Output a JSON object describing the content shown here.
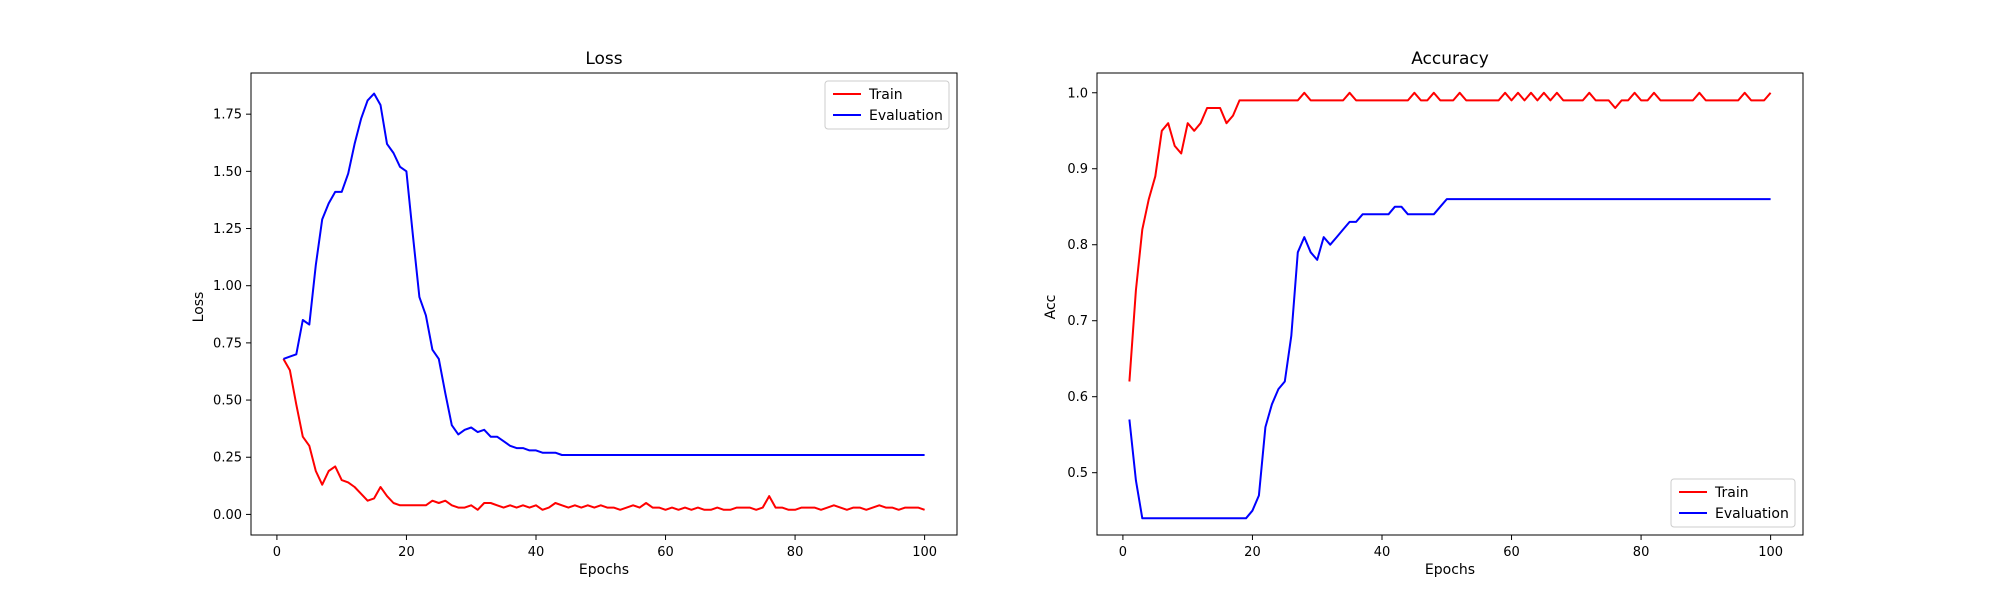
{
  "chart_data": [
    {
      "type": "line",
      "title": "Loss",
      "xlabel": "Epochs",
      "ylabel": "Loss",
      "xlim": [
        -4,
        105
      ],
      "ylim": [
        -0.09,
        1.93
      ],
      "xticks": [
        0,
        20,
        40,
        60,
        80,
        100
      ],
      "xtick_labels": [
        "0",
        "20",
        "40",
        "60",
        "80",
        "100"
      ],
      "yticks": [
        0,
        0.25,
        0.5,
        0.75,
        1.0,
        1.25,
        1.5,
        1.75
      ],
      "ytick_labels": [
        "0.00",
        "0.25",
        "0.50",
        "0.75",
        "1.00",
        "1.25",
        "1.50",
        "1.75"
      ],
      "grid": false,
      "legend_position": "top-right",
      "x": [
        1,
        2,
        3,
        4,
        5,
        6,
        7,
        8,
        9,
        10,
        11,
        12,
        13,
        14,
        15,
        16,
        17,
        18,
        19,
        20,
        21,
        22,
        23,
        24,
        25,
        26,
        27,
        28,
        29,
        30,
        31,
        32,
        33,
        34,
        35,
        36,
        37,
        38,
        39,
        40,
        41,
        42,
        43,
        44,
        45,
        46,
        47,
        48,
        49,
        50,
        51,
        52,
        53,
        54,
        55,
        56,
        57,
        58,
        59,
        60,
        61,
        62,
        63,
        64,
        65,
        66,
        67,
        68,
        69,
        70,
        71,
        72,
        73,
        74,
        75,
        76,
        77,
        78,
        79,
        80,
        81,
        82,
        83,
        84,
        85,
        86,
        87,
        88,
        89,
        90,
        91,
        92,
        93,
        94,
        95,
        96,
        97,
        98,
        99,
        100
      ],
      "series": [
        {
          "name": "Train",
          "color": "#ff0000",
          "values": [
            0.68,
            0.63,
            0.48,
            0.34,
            0.3,
            0.19,
            0.13,
            0.19,
            0.21,
            0.15,
            0.14,
            0.12,
            0.09,
            0.06,
            0.07,
            0.12,
            0.08,
            0.05,
            0.04,
            0.04,
            0.04,
            0.04,
            0.04,
            0.06,
            0.05,
            0.06,
            0.04,
            0.03,
            0.03,
            0.04,
            0.02,
            0.05,
            0.05,
            0.04,
            0.03,
            0.04,
            0.03,
            0.04,
            0.03,
            0.04,
            0.02,
            0.03,
            0.05,
            0.04,
            0.03,
            0.04,
            0.03,
            0.04,
            0.03,
            0.04,
            0.03,
            0.03,
            0.02,
            0.03,
            0.04,
            0.03,
            0.05,
            0.03,
            0.03,
            0.02,
            0.03,
            0.02,
            0.03,
            0.02,
            0.03,
            0.02,
            0.02,
            0.03,
            0.02,
            0.02,
            0.03,
            0.03,
            0.03,
            0.02,
            0.03,
            0.08,
            0.03,
            0.03,
            0.02,
            0.02,
            0.03,
            0.03,
            0.03,
            0.02,
            0.03,
            0.04,
            0.03,
            0.02,
            0.03,
            0.03,
            0.02,
            0.03,
            0.04,
            0.03,
            0.03,
            0.02,
            0.03,
            0.03,
            0.03,
            0.02
          ]
        },
        {
          "name": "Evaluation",
          "color": "#0000ff",
          "values": [
            0.68,
            0.69,
            0.7,
            0.85,
            0.83,
            1.09,
            1.29,
            1.36,
            1.41,
            1.41,
            1.49,
            1.62,
            1.73,
            1.81,
            1.84,
            1.79,
            1.62,
            1.58,
            1.52,
            1.5,
            1.22,
            0.95,
            0.87,
            0.72,
            0.68,
            0.53,
            0.39,
            0.35,
            0.37,
            0.38,
            0.36,
            0.37,
            0.34,
            0.34,
            0.32,
            0.3,
            0.29,
            0.29,
            0.28,
            0.28,
            0.27,
            0.27,
            0.27,
            0.26,
            0.26,
            0.26,
            0.26,
            0.26,
            0.26,
            0.26,
            0.26,
            0.26,
            0.26,
            0.26,
            0.26,
            0.26,
            0.26,
            0.26,
            0.26,
            0.26,
            0.26,
            0.26,
            0.26,
            0.26,
            0.26,
            0.26,
            0.26,
            0.26,
            0.26,
            0.26,
            0.26,
            0.26,
            0.26,
            0.26,
            0.26,
            0.26,
            0.26,
            0.26,
            0.26,
            0.26,
            0.26,
            0.26,
            0.26,
            0.26,
            0.26,
            0.26,
            0.26,
            0.26,
            0.26,
            0.26,
            0.26,
            0.26,
            0.26,
            0.26,
            0.26,
            0.26,
            0.26,
            0.26,
            0.26,
            0.26
          ]
        }
      ]
    },
    {
      "type": "line",
      "title": "Accuracy",
      "xlabel": "Epochs",
      "ylabel": "Acc",
      "xlim": [
        -4,
        105
      ],
      "ylim": [
        0.418,
        1.026
      ],
      "xticks": [
        0,
        20,
        40,
        60,
        80,
        100
      ],
      "xtick_labels": [
        "0",
        "20",
        "40",
        "60",
        "80",
        "100"
      ],
      "yticks": [
        0.5,
        0.6,
        0.7,
        0.8,
        0.9,
        1.0
      ],
      "ytick_labels": [
        "0.5",
        "0.6",
        "0.7",
        "0.8",
        "0.9",
        "1.0"
      ],
      "grid": false,
      "legend_position": "lower-right",
      "x": [
        1,
        2,
        3,
        4,
        5,
        6,
        7,
        8,
        9,
        10,
        11,
        12,
        13,
        14,
        15,
        16,
        17,
        18,
        19,
        20,
        21,
        22,
        23,
        24,
        25,
        26,
        27,
        28,
        29,
        30,
        31,
        32,
        33,
        34,
        35,
        36,
        37,
        38,
        39,
        40,
        41,
        42,
        43,
        44,
        45,
        46,
        47,
        48,
        49,
        50,
        51,
        52,
        53,
        54,
        55,
        56,
        57,
        58,
        59,
        60,
        61,
        62,
        63,
        64,
        65,
        66,
        67,
        68,
        69,
        70,
        71,
        72,
        73,
        74,
        75,
        76,
        77,
        78,
        79,
        80,
        81,
        82,
        83,
        84,
        85,
        86,
        87,
        88,
        89,
        90,
        91,
        92,
        93,
        94,
        95,
        96,
        97,
        98,
        99,
        100
      ],
      "series": [
        {
          "name": "Train",
          "color": "#ff0000",
          "values": [
            0.62,
            0.74,
            0.82,
            0.86,
            0.89,
            0.95,
            0.96,
            0.93,
            0.92,
            0.96,
            0.95,
            0.96,
            0.98,
            0.98,
            0.98,
            0.96,
            0.97,
            0.99,
            0.99,
            0.99,
            0.99,
            0.99,
            0.99,
            0.99,
            0.99,
            0.99,
            0.99,
            1.0,
            0.99,
            0.99,
            0.99,
            0.99,
            0.99,
            0.99,
            1.0,
            0.99,
            0.99,
            0.99,
            0.99,
            0.99,
            0.99,
            0.99,
            0.99,
            0.99,
            1.0,
            0.99,
            0.99,
            1.0,
            0.99,
            0.99,
            0.99,
            1.0,
            0.99,
            0.99,
            0.99,
            0.99,
            0.99,
            0.99,
            1.0,
            0.99,
            1.0,
            0.99,
            1.0,
            0.99,
            1.0,
            0.99,
            1.0,
            0.99,
            0.99,
            0.99,
            0.99,
            1.0,
            0.99,
            0.99,
            0.99,
            0.98,
            0.99,
            0.99,
            1.0,
            0.99,
            0.99,
            1.0,
            0.99,
            0.99,
            0.99,
            0.99,
            0.99,
            0.99,
            1.0,
            0.99,
            0.99,
            0.99,
            0.99,
            0.99,
            0.99,
            1.0,
            0.99,
            0.99,
            0.99,
            1.0
          ]
        },
        {
          "name": "Evaluation",
          "color": "#0000ff",
          "values": [
            0.57,
            0.49,
            0.44,
            0.44,
            0.44,
            0.44,
            0.44,
            0.44,
            0.44,
            0.44,
            0.44,
            0.44,
            0.44,
            0.44,
            0.44,
            0.44,
            0.44,
            0.44,
            0.44,
            0.45,
            0.47,
            0.56,
            0.59,
            0.61,
            0.62,
            0.68,
            0.79,
            0.81,
            0.79,
            0.78,
            0.81,
            0.8,
            0.81,
            0.82,
            0.83,
            0.83,
            0.84,
            0.84,
            0.84,
            0.84,
            0.84,
            0.85,
            0.85,
            0.84,
            0.84,
            0.84,
            0.84,
            0.84,
            0.85,
            0.86,
            0.86,
            0.86,
            0.86,
            0.86,
            0.86,
            0.86,
            0.86,
            0.86,
            0.86,
            0.86,
            0.86,
            0.86,
            0.86,
            0.86,
            0.86,
            0.86,
            0.86,
            0.86,
            0.86,
            0.86,
            0.86,
            0.86,
            0.86,
            0.86,
            0.86,
            0.86,
            0.86,
            0.86,
            0.86,
            0.86,
            0.86,
            0.86,
            0.86,
            0.86,
            0.86,
            0.86,
            0.86,
            0.86,
            0.86,
            0.86,
            0.86,
            0.86,
            0.86,
            0.86,
            0.86,
            0.86,
            0.86,
            0.86,
            0.86,
            0.86
          ]
        }
      ]
    }
  ]
}
